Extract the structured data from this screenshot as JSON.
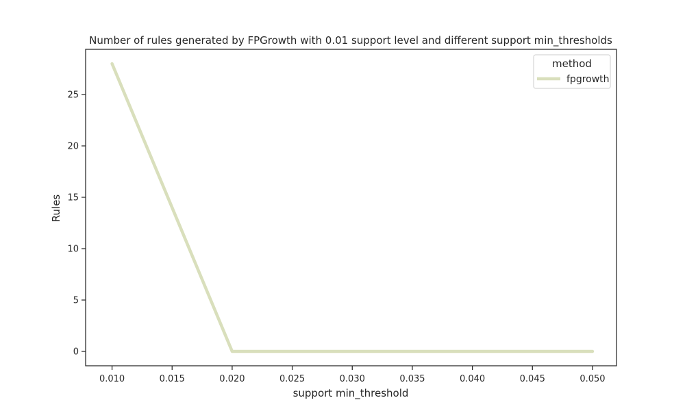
{
  "chart_data": {
    "type": "line",
    "title": "Number of rules generated by FPGrowth with 0.01 support level and different support min_thresholds",
    "xlabel": "support min_threshold",
    "ylabel": "Rules",
    "x": [
      0.01,
      0.02,
      0.03,
      0.04,
      0.05
    ],
    "series": [
      {
        "name": "fpgrowth",
        "values": [
          28,
          0,
          0,
          0,
          0
        ],
        "color": "#d9dfbc"
      }
    ],
    "xlim": [
      0.0078,
      0.052
    ],
    "ylim": [
      -1.4,
      29.4
    ],
    "xticks": [
      {
        "value": 0.01,
        "label": "0.010"
      },
      {
        "value": 0.015,
        "label": "0.015"
      },
      {
        "value": 0.02,
        "label": "0.020"
      },
      {
        "value": 0.025,
        "label": "0.025"
      },
      {
        "value": 0.03,
        "label": "0.030"
      },
      {
        "value": 0.035,
        "label": "0.035"
      },
      {
        "value": 0.04,
        "label": "0.040"
      },
      {
        "value": 0.045,
        "label": "0.045"
      },
      {
        "value": 0.05,
        "label": "0.050"
      }
    ],
    "yticks": [
      {
        "value": 0,
        "label": "0"
      },
      {
        "value": 5,
        "label": "5"
      },
      {
        "value": 10,
        "label": "10"
      },
      {
        "value": 15,
        "label": "15"
      },
      {
        "value": 20,
        "label": "20"
      },
      {
        "value": 25,
        "label": "25"
      }
    ],
    "legend": {
      "title": "method",
      "placement": "top-right"
    },
    "grid": false
  }
}
